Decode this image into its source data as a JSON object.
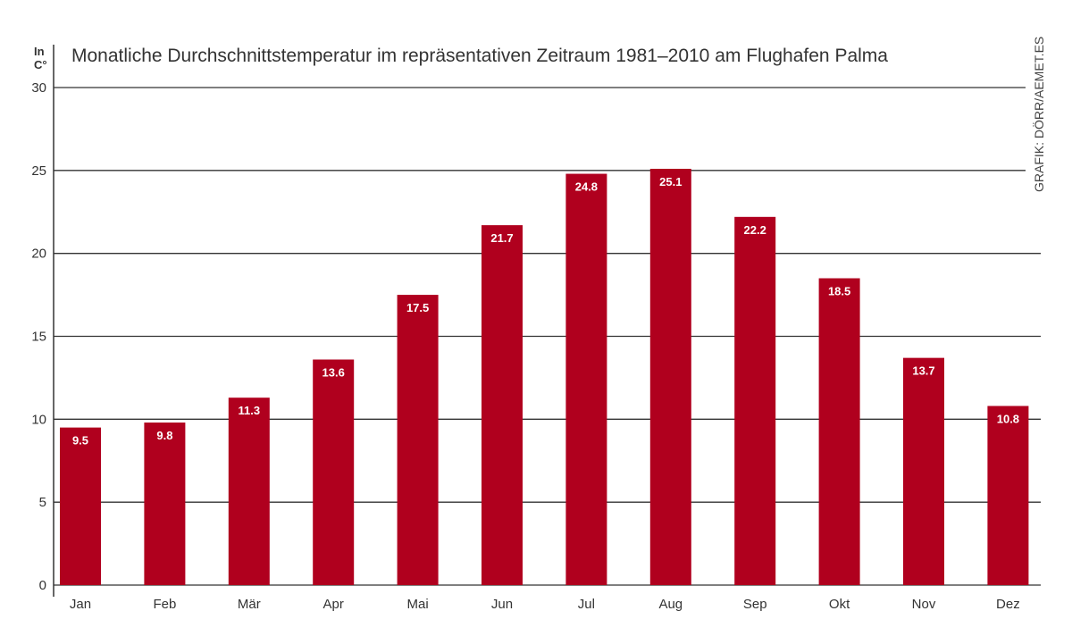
{
  "chart_data": {
    "type": "bar",
    "title": "Monatliche Durchschnittstemperatur im repräsentativen Zeitraum 1981–2010 am Flughafen Palma",
    "ylabel_line1": "In",
    "ylabel_line2": "C°",
    "xlabel": "",
    "credit": "GRAFIK: DÖRR/AEMET.ES",
    "categories": [
      "Jan",
      "Feb",
      "Mär",
      "Apr",
      "Mai",
      "Jun",
      "Jul",
      "Aug",
      "Sep",
      "Okt",
      "Nov",
      "Dez"
    ],
    "values": [
      9.5,
      9.8,
      11.3,
      13.6,
      17.5,
      21.7,
      24.8,
      25.1,
      22.2,
      18.5,
      13.7,
      10.8
    ],
    "data_labels": [
      "9.5",
      "9.8",
      "11.3",
      "13.6",
      "17.5",
      "21.7",
      "24.8",
      "25.1",
      "22.2",
      "18.5",
      "13.7",
      "10.8"
    ],
    "yticks": [
      0,
      5,
      10,
      15,
      20,
      25,
      30
    ],
    "ylim": [
      0,
      30
    ],
    "grid": true,
    "legend": "none",
    "bar_color": "#b0001e"
  }
}
